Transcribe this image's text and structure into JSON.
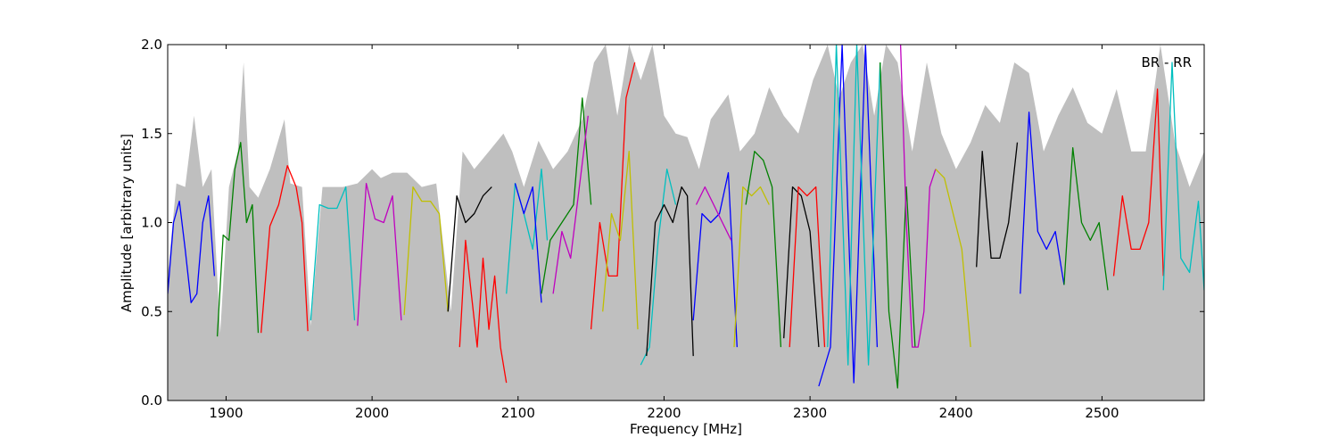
{
  "chart_data": {
    "type": "line",
    "title": "",
    "xlabel": "Frequency [MHz]",
    "ylabel": "Amplitude [arbitrary units]",
    "xlim": [
      1860,
      2570
    ],
    "ylim": [
      0.0,
      2.0
    ],
    "xticks": [
      1900,
      2000,
      2100,
      2200,
      2300,
      2400,
      2500
    ],
    "xtick_labels": [
      "1900",
      "2000",
      "2100",
      "2200",
      "2300",
      "2400",
      "2500"
    ],
    "yticks": [
      0.0,
      0.5,
      1.0,
      1.5,
      2.0
    ],
    "ytick_labels": [
      "0.0",
      "0.5",
      "1.0",
      "1.5",
      "2.0"
    ],
    "grid": false,
    "annotation": "BR - RR",
    "background": {
      "color": "#bfbfbf",
      "x": [
        1860,
        1866,
        1872,
        1878,
        1884,
        1890,
        1896,
        1902,
        1908,
        1912,
        1916,
        1922,
        1930,
        1940,
        1944,
        1952,
        1958,
        1966,
        1980,
        1990,
        2000,
        2006,
        2014,
        2024,
        2034,
        2044,
        2054,
        2062,
        2070,
        2080,
        2090,
        2096,
        2104,
        2114,
        2124,
        2134,
        2144,
        2152,
        2160,
        2168,
        2176,
        2184,
        2192,
        2200,
        2208,
        2216,
        2224,
        2232,
        2244,
        2252,
        2262,
        2272,
        2282,
        2292,
        2302,
        2312,
        2320,
        2328,
        2336,
        2344,
        2352,
        2360,
        2370,
        2380,
        2390,
        2400,
        2410,
        2420,
        2430,
        2440,
        2450,
        2460,
        2470,
        2480,
        2490,
        2500,
        2510,
        2520,
        2530,
        2540,
        2550,
        2560,
        2570
      ],
      "y": [
        0.7,
        1.22,
        1.2,
        1.6,
        1.2,
        1.3,
        0.38,
        1.2,
        1.4,
        1.9,
        1.2,
        1.14,
        1.3,
        1.58,
        1.22,
        1.2,
        0.42,
        1.2,
        1.2,
        1.22,
        1.3,
        1.25,
        1.28,
        1.28,
        1.2,
        1.22,
        0.5,
        1.4,
        1.3,
        1.4,
        1.5,
        1.4,
        1.2,
        1.46,
        1.3,
        1.4,
        1.58,
        1.9,
        2.0,
        1.6,
        2.0,
        1.8,
        2.0,
        1.6,
        1.5,
        1.48,
        1.3,
        1.58,
        1.72,
        1.4,
        1.5,
        1.76,
        1.6,
        1.5,
        1.8,
        2.0,
        1.7,
        1.9,
        2.0,
        1.6,
        2.0,
        1.9,
        1.4,
        1.9,
        1.5,
        1.3,
        1.45,
        1.66,
        1.56,
        1.9,
        1.84,
        1.4,
        1.6,
        1.76,
        1.56,
        1.5,
        1.75,
        1.4,
        1.4,
        2.0,
        1.45,
        1.2,
        1.4
      ]
    },
    "series": [
      {
        "color": "#0000ff",
        "x": [
          1860,
          1864,
          1868,
          1872,
          1876,
          1880,
          1884,
          1888,
          1892
        ],
        "y": [
          0.6,
          1.0,
          1.12,
          0.85,
          0.55,
          0.6,
          1.0,
          1.15,
          0.7
        ]
      },
      {
        "color": "#008000",
        "x": [
          1894,
          1898,
          1902,
          1906,
          1910,
          1914,
          1918,
          1922
        ],
        "y": [
          0.36,
          0.93,
          0.9,
          1.3,
          1.45,
          1.0,
          1.1,
          0.38
        ]
      },
      {
        "color": "#ff0000",
        "x": [
          1924,
          1930,
          1936,
          1942,
          1948,
          1952,
          1956
        ],
        "y": [
          0.38,
          0.98,
          1.1,
          1.32,
          1.2,
          1.0,
          0.39
        ]
      },
      {
        "color": "#00bfbf",
        "x": [
          1958,
          1964,
          1970,
          1976,
          1982,
          1988
        ],
        "y": [
          0.45,
          1.1,
          1.08,
          1.08,
          1.2,
          0.45
        ]
      },
      {
        "color": "#bf00bf",
        "x": [
          1990,
          1996,
          2002,
          2008,
          2014,
          2020
        ],
        "y": [
          0.42,
          1.22,
          1.02,
          1.0,
          1.15,
          0.45
        ]
      },
      {
        "color": "#bfbf00",
        "x": [
          2022,
          2028,
          2034,
          2040,
          2046,
          2052
        ],
        "y": [
          0.48,
          1.2,
          1.12,
          1.12,
          1.05,
          0.5
        ]
      },
      {
        "color": "#000000",
        "x": [
          2052,
          2058,
          2064,
          2070,
          2076,
          2082
        ],
        "y": [
          0.5,
          1.15,
          1.0,
          1.05,
          1.15,
          1.2
        ]
      },
      {
        "color": "#ff0000",
        "x": [
          2060,
          2064,
          2068,
          2072,
          2076,
          2080,
          2084,
          2088,
          2092
        ],
        "y": [
          0.3,
          0.9,
          0.6,
          0.3,
          0.8,
          0.4,
          0.7,
          0.3,
          0.1
        ]
      },
      {
        "color": "#00bfbf",
        "x": [
          2092,
          2098,
          2104,
          2110,
          2116,
          2120
        ],
        "y": [
          0.6,
          1.22,
          1.05,
          0.85,
          1.3,
          0.9
        ]
      },
      {
        "color": "#0000ff",
        "x": [
          2098,
          2104,
          2110,
          2116
        ],
        "y": [
          1.22,
          1.05,
          1.2,
          0.55
        ]
      },
      {
        "color": "#008000",
        "x": [
          2116,
          2122,
          2130,
          2138,
          2144,
          2150
        ],
        "y": [
          0.6,
          0.9,
          1.0,
          1.1,
          1.7,
          1.1
        ]
      },
      {
        "color": "#bf00bf",
        "x": [
          2124,
          2130,
          2136,
          2142,
          2148
        ],
        "y": [
          0.6,
          0.95,
          0.8,
          1.2,
          1.6
        ]
      },
      {
        "color": "#ff0000",
        "x": [
          2150,
          2156,
          2162,
          2168,
          2174,
          2180
        ],
        "y": [
          0.4,
          1.0,
          0.7,
          0.7,
          1.7,
          1.9
        ]
      },
      {
        "color": "#bfbf00",
        "x": [
          2158,
          2164,
          2170,
          2176,
          2182
        ],
        "y": [
          0.5,
          1.05,
          0.9,
          1.4,
          0.4
        ]
      },
      {
        "color": "#00bfbf",
        "x": [
          2184,
          2190,
          2196,
          2202,
          2208
        ],
        "y": [
          0.2,
          0.3,
          0.9,
          1.3,
          1.1
        ]
      },
      {
        "color": "#000000",
        "x": [
          2188,
          2194,
          2200,
          2206,
          2212,
          2216,
          2220
        ],
        "y": [
          0.25,
          1.0,
          1.1,
          1.0,
          1.2,
          1.15,
          0.25
        ]
      },
      {
        "color": "#0000ff",
        "x": [
          2220,
          2226,
          2232,
          2238,
          2244,
          2250
        ],
        "y": [
          0.45,
          1.05,
          1.0,
          1.05,
          1.28,
          0.3
        ]
      },
      {
        "color": "#bf00bf",
        "x": [
          2222,
          2228,
          2234,
          2240,
          2246
        ],
        "y": [
          1.1,
          1.2,
          1.1,
          1.0,
          0.9
        ]
      },
      {
        "color": "#bfbf00",
        "x": [
          2248,
          2254,
          2260,
          2266,
          2272
        ],
        "y": [
          0.3,
          1.2,
          1.15,
          1.2,
          1.1
        ]
      },
      {
        "color": "#008000",
        "x": [
          2256,
          2262,
          2268,
          2274,
          2280
        ],
        "y": [
          1.1,
          1.4,
          1.35,
          1.2,
          0.3
        ]
      },
      {
        "color": "#000000",
        "x": [
          2282,
          2288,
          2294,
          2300,
          2306
        ],
        "y": [
          0.35,
          1.2,
          1.15,
          0.95,
          0.3
        ]
      },
      {
        "color": "#ff0000",
        "x": [
          2286,
          2292,
          2298,
          2304,
          2310
        ],
        "y": [
          0.3,
          1.2,
          1.15,
          1.2,
          0.3
        ]
      },
      {
        "color": "#0000ff",
        "x": [
          2306,
          2314,
          2322,
          2330,
          2338,
          2346
        ],
        "y": [
          0.08,
          0.3,
          2.0,
          0.1,
          2.0,
          0.3
        ]
      },
      {
        "color": "#00bfbf",
        "x": [
          2312,
          2318,
          2326,
          2332,
          2340,
          2348
        ],
        "y": [
          0.3,
          2.0,
          0.2,
          2.0,
          0.2,
          1.9
        ]
      },
      {
        "color": "#008000",
        "x": [
          2348,
          2354,
          2360,
          2366,
          2372
        ],
        "y": [
          1.9,
          0.5,
          0.07,
          1.2,
          0.3
        ]
      },
      {
        "color": "#bf00bf",
        "x": [
          2362,
          2366,
          2370,
          2374,
          2378,
          2382,
          2386
        ],
        "y": [
          2.0,
          1.0,
          0.3,
          0.3,
          0.5,
          1.2,
          1.3
        ]
      },
      {
        "color": "#bfbf00",
        "x": [
          2386,
          2392,
          2398,
          2404,
          2410
        ],
        "y": [
          1.3,
          1.25,
          1.05,
          0.85,
          0.3
        ]
      },
      {
        "color": "#000000",
        "x": [
          2414,
          2418,
          2424,
          2430,
          2436,
          2442
        ],
        "y": [
          0.75,
          1.4,
          0.8,
          0.8,
          1.0,
          1.45
        ]
      },
      {
        "color": "#0000ff",
        "x": [
          2444,
          2450,
          2456,
          2462,
          2468,
          2474
        ],
        "y": [
          0.6,
          1.62,
          0.95,
          0.85,
          0.95,
          0.65
        ]
      },
      {
        "color": "#008000",
        "x": [
          2474,
          2480,
          2486,
          2492,
          2498,
          2504
        ],
        "y": [
          0.65,
          1.42,
          1.0,
          0.9,
          1.0,
          0.62
        ]
      },
      {
        "color": "#ff0000",
        "x": [
          2508,
          2514,
          2520,
          2526,
          2532,
          2538,
          2542
        ],
        "y": [
          0.7,
          1.15,
          0.85,
          0.85,
          1.0,
          1.75,
          0.7
        ]
      },
      {
        "color": "#00bfbf",
        "x": [
          2542,
          2548,
          2554,
          2560,
          2566,
          2570
        ],
        "y": [
          0.62,
          1.9,
          0.8,
          0.72,
          1.12,
          0.62
        ]
      }
    ]
  }
}
